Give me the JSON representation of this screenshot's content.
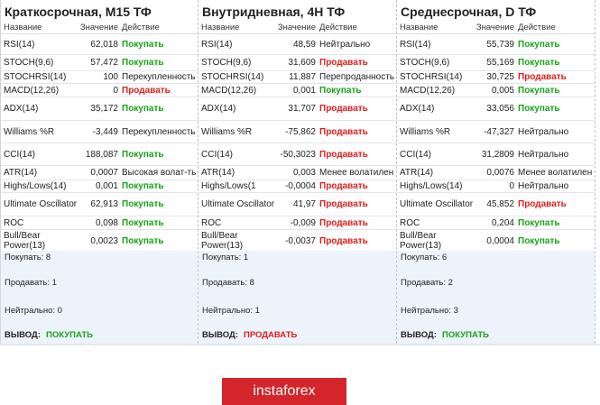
{
  "headers": {
    "name": "Название",
    "value": "Значение",
    "action": "Действие"
  },
  "panels": [
    {
      "title": "Краткосрочная, М15 ТФ",
      "rows": [
        {
          "name": "RSI(14)",
          "value": "62,018",
          "action": "Покупать",
          "type": "buy"
        },
        {
          "name": "STOCH(9,6)",
          "value": "57,472",
          "action": "Покупать",
          "type": "buy"
        },
        {
          "name": "STOCHRSI(14)",
          "value": "100",
          "action": "Перекупленность",
          "type": "neutral"
        },
        {
          "name": "MACD(12,26)",
          "value": "0",
          "action": "Продавать",
          "type": "sell"
        },
        {
          "name": "ADX(14)",
          "value": "35,172",
          "action": "Покупать",
          "type": "buy"
        },
        {
          "name": "Williams %R",
          "value": "-3,449",
          "action": "Перекупленность",
          "type": "neutral"
        },
        {
          "name": "CCI(14)",
          "value": "188,087",
          "action": "Покупать",
          "type": "buy"
        },
        {
          "name": "ATR(14)",
          "value": "0,0007",
          "action": "Высокая волат-ть",
          "type": "neutral"
        },
        {
          "name": "Highs/Lows(14)",
          "value": "0,001",
          "action": "Покупать",
          "type": "buy"
        },
        {
          "name": "Ultimate Oscillator",
          "value": "62,913",
          "action": "Покупать",
          "type": "buy"
        },
        {
          "name": "ROC",
          "value": "0,098",
          "action": "Покупать",
          "type": "buy"
        },
        {
          "name": "Bull/Bear Power(13)",
          "value": "0,0023",
          "action": "Покупать",
          "type": "buy"
        }
      ],
      "summary": {
        "buy": "Покупать: 8",
        "sell": "Продавать: 1",
        "neutral": "Нейтрально: 0",
        "verdict_label": "ВЫВОД:",
        "verdict": "ПОКУПАТЬ",
        "verdict_type": "buy"
      }
    },
    {
      "title": "Внутридневная, 4Н ТФ",
      "rows": [
        {
          "name": "RSI(14)",
          "value": "48,59",
          "action": "Нейтрально",
          "type": "neutral"
        },
        {
          "name": "STOCH(9,6)",
          "value": "31,609",
          "action": "Продавать",
          "type": "sell"
        },
        {
          "name": "STOCHRSI(14)",
          "value": "11,887",
          "action": "Перепроданность",
          "type": "neutral"
        },
        {
          "name": "MACD(12,26)",
          "value": "0,001",
          "action": "Покупать",
          "type": "buy"
        },
        {
          "name": "ADX(14)",
          "value": "31,707",
          "action": "Продавать",
          "type": "sell"
        },
        {
          "name": "Williams %R",
          "value": "-75,862",
          "action": "Продавать",
          "type": "sell"
        },
        {
          "name": "CCI(14)",
          "value": "-50,3023",
          "action": "Продавать",
          "type": "sell"
        },
        {
          "name": "ATR(14)",
          "value": "0,003",
          "action": "Менее волатилен",
          "type": "neutral"
        },
        {
          "name": "Highs/Lows(1",
          "value": "-0,0004",
          "action": "Продавать",
          "type": "sell"
        },
        {
          "name": "Ultimate Oscillator",
          "value": "41,97",
          "action": "Продавать",
          "type": "sell"
        },
        {
          "name": "ROC",
          "value": "-0,009",
          "action": "Продавать",
          "type": "sell"
        },
        {
          "name": "Bull/Bear Power(13)",
          "value": "-0,0037",
          "action": "Продавать",
          "type": "sell"
        }
      ],
      "summary": {
        "buy": "Покупать: 1",
        "sell": "Продавать: 8",
        "neutral": "Нейтрально: 1",
        "verdict_label": "ВЫВОД:",
        "verdict": "ПРОДАВАТЬ",
        "verdict_type": "sell"
      }
    },
    {
      "title": "Среднесрочная, D ТФ",
      "rows": [
        {
          "name": "RSI(14)",
          "value": "55,739",
          "action": "Покупать",
          "type": "buy"
        },
        {
          "name": "STOCH(9,6)",
          "value": "55,169",
          "action": "Покупать",
          "type": "buy"
        },
        {
          "name": "STOCHRSI(14)",
          "value": "30,725",
          "action": "Продавать",
          "type": "sell"
        },
        {
          "name": "MACD(12,26)",
          "value": "0,005",
          "action": "Покупать",
          "type": "buy"
        },
        {
          "name": "ADX(14)",
          "value": "33,056",
          "action": "Покупать",
          "type": "buy"
        },
        {
          "name": "Williams %R",
          "value": "-47,327",
          "action": "Нейтрально",
          "type": "neutral"
        },
        {
          "name": "CCI(14)",
          "value": "31,2809",
          "action": "Нейтрально",
          "type": "neutral"
        },
        {
          "name": "ATR(14)",
          "value": "0,0076",
          "action": "Менее волатилен",
          "type": "neutral"
        },
        {
          "name": "Highs/Lows(14)",
          "value": "0",
          "action": "Нейтрально",
          "type": "neutral"
        },
        {
          "name": "Ultimate Oscillator",
          "value": "45,852",
          "action": "Продавать",
          "type": "sell"
        },
        {
          "name": "ROC",
          "value": "0,204",
          "action": "Покупать",
          "type": "buy"
        },
        {
          "name": "Bull/Bear Power(13)",
          "value": "0,0004",
          "action": "Покупать",
          "type": "buy"
        }
      ],
      "summary": {
        "buy": "Покупать: 6",
        "sell": "Продавать: 2",
        "neutral": "Нейтрально: 3",
        "verdict_label": "ВЫВОД:",
        "verdict": "ПОКУПАТЬ",
        "verdict_type": "buy"
      }
    }
  ],
  "logo": {
    "text": "instaforex",
    "color": "#d3252a"
  },
  "colors": {
    "buy": "#1aa31a",
    "sell": "#e21c1c",
    "summary_bg": "#edf3fa"
  }
}
